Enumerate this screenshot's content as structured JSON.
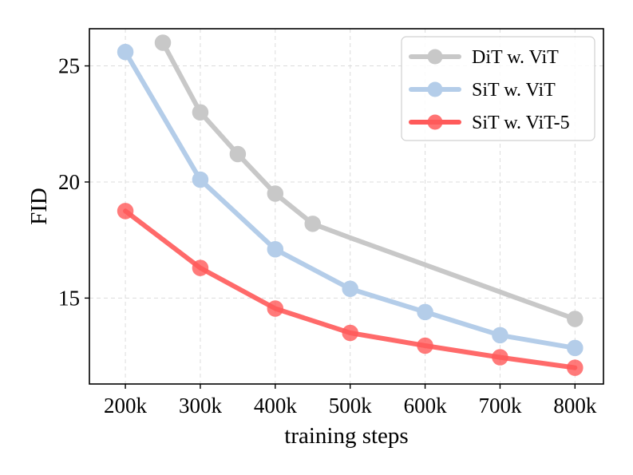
{
  "chart_data": {
    "type": "line",
    "title": "",
    "xlabel": "training steps",
    "ylabel": "FID",
    "x_ticks": [
      {
        "value": 200,
        "label": "200k"
      },
      {
        "value": 300,
        "label": "300k"
      },
      {
        "value": 400,
        "label": "400k"
      },
      {
        "value": 500,
        "label": "500k"
      },
      {
        "value": 600,
        "label": "600k"
      },
      {
        "value": 700,
        "label": "700k"
      },
      {
        "value": 800,
        "label": "800k"
      }
    ],
    "y_ticks": [
      {
        "value": 15,
        "label": "15"
      },
      {
        "value": 20,
        "label": "20"
      },
      {
        "value": 25,
        "label": "25"
      }
    ],
    "xlim": [
      152,
      838
    ],
    "ylim": [
      11.3,
      26.6
    ],
    "grid": true,
    "legend_position": "top-right",
    "series": [
      {
        "name": "DiT w. ViT",
        "color": "#c8c8c8",
        "markers": [
          [
            250,
            26.0
          ],
          [
            300,
            23.0
          ],
          [
            350,
            21.2
          ],
          [
            400,
            19.5
          ],
          [
            450,
            18.2
          ],
          [
            800,
            14.1
          ]
        ],
        "x": [
          250,
          300,
          350,
          400,
          450,
          500,
          800
        ],
        "y": [
          26.0,
          23.0,
          21.2,
          19.5,
          18.2,
          17.6,
          14.1
        ]
      },
      {
        "name": "SiT w. ViT",
        "color": "#b4cde9",
        "markers": [
          [
            200,
            25.6
          ],
          [
            300,
            20.1
          ],
          [
            400,
            17.1
          ],
          [
            500,
            15.4
          ],
          [
            600,
            14.4
          ],
          [
            700,
            13.4
          ],
          [
            800,
            12.85
          ]
        ],
        "x": [
          200,
          300,
          400,
          500,
          600,
          700,
          800
        ],
        "y": [
          25.6,
          20.1,
          17.1,
          15.4,
          14.4,
          13.4,
          12.85
        ]
      },
      {
        "name": "SiT w. ViT-5",
        "color": "#ff5a5a",
        "markers": [
          [
            200,
            18.75
          ],
          [
            300,
            16.3
          ],
          [
            400,
            14.55
          ],
          [
            500,
            13.5
          ],
          [
            600,
            12.95
          ],
          [
            700,
            12.45
          ],
          [
            800,
            12.0
          ]
        ],
        "x": [
          200,
          300,
          400,
          500,
          600,
          700,
          800
        ],
        "y": [
          18.75,
          16.3,
          14.55,
          13.5,
          12.95,
          12.45,
          12.0
        ]
      }
    ]
  }
}
